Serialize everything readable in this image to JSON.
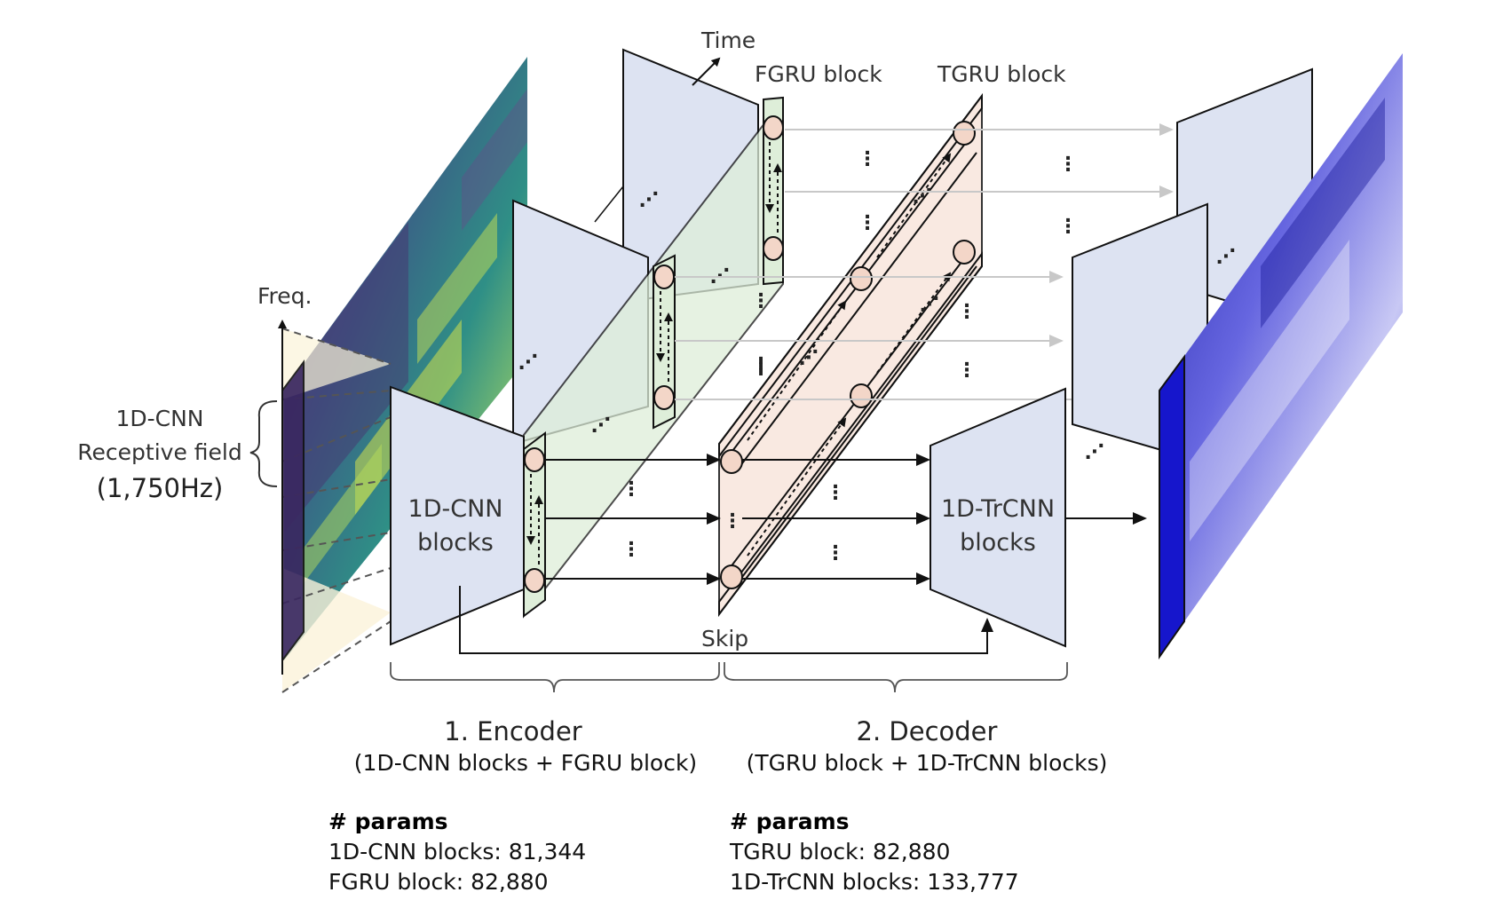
{
  "labels": {
    "time": "Time",
    "freq": "Freq.",
    "fgru_block": "FGRU block",
    "tgru_block": "TGRU block",
    "receptive_line1": "1D-CNN",
    "receptive_line2": "Receptive field",
    "receptive_line3": "(1,750Hz)",
    "cnn_line1": "1D-CNN",
    "cnn_line2": "blocks",
    "trcnn_line1": "1D-TrCNN",
    "trcnn_line2": "blocks",
    "skip": "Skip",
    "ellipsis": "⋮",
    "diag_ellipsis": "⋰"
  },
  "encoder": {
    "title": "1.   Encoder",
    "subtitle": "(1D-CNN blocks + FGRU block)",
    "params_heading": "# params",
    "params": [
      "1D-CNN blocks: 81,344",
      "FGRU block: 82,880"
    ]
  },
  "decoder": {
    "title": "2. Decoder",
    "subtitle": "(TGRU block + 1D-TrCNN blocks)",
    "params_heading": "# params",
    "params": [
      "TGRU block: 82,880",
      "1D-TrCNN blocks: 133,777"
    ]
  },
  "colors": {
    "feature_map": "#dde3f2",
    "fgru_fill": "#deeed9",
    "tgru_fill": "#f8e6dc",
    "node_fill": "#f3d6c8",
    "spec_in": "#3f2a63",
    "spec_in_hi": "#d4e04a",
    "spec_out": "#1a1acc",
    "receptive": "#fbf3d9"
  }
}
